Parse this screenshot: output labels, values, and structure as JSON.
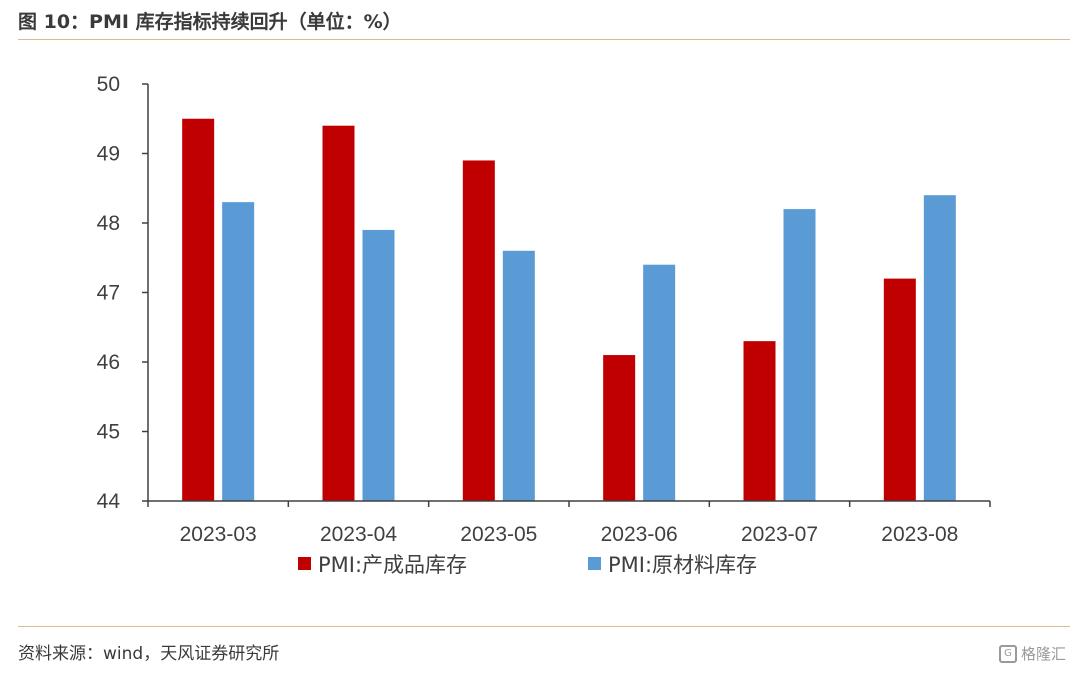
{
  "header": {
    "title": "图 10：PMI 库存指标持续回升（单位：%）"
  },
  "footer": {
    "source": "资料来源：wind，天风证券研究所",
    "watermark": "格隆汇"
  },
  "chart_data": {
    "type": "bar",
    "categories": [
      "2023-03",
      "2023-04",
      "2023-05",
      "2023-06",
      "2023-07",
      "2023-08"
    ],
    "series": [
      {
        "name": "PMI:产成品库存",
        "values": [
          49.5,
          49.4,
          48.9,
          46.1,
          46.3,
          47.2
        ],
        "color": "#c00000"
      },
      {
        "name": "PMI:原材料库存",
        "values": [
          48.3,
          47.9,
          47.6,
          47.4,
          48.2,
          48.4
        ],
        "color": "#5b9bd5"
      }
    ],
    "ylim": [
      44,
      50
    ],
    "yticks": [
      44,
      45,
      46,
      47,
      48,
      49,
      50
    ],
    "grid": false,
    "legend": "bottom"
  }
}
